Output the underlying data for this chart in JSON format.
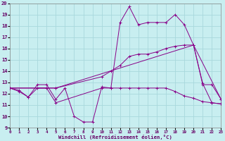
{
  "xlabel": "Windchill (Refroidissement éolien,°C)",
  "bg_color": "#c8eef0",
  "grid_color": "#a8d8dc",
  "line_color": "#880088",
  "xmin": 0,
  "xmax": 23,
  "ymin": 9,
  "ymax": 20,
  "lines": [
    {
      "x": [
        0,
        1,
        2,
        3,
        4,
        5,
        6,
        7,
        8,
        9,
        10,
        11,
        12,
        13,
        14,
        15,
        16,
        17,
        18,
        19,
        20,
        21,
        22,
        23
      ],
      "y": [
        12.5,
        12.2,
        11.7,
        12.8,
        12.8,
        11.5,
        12.5,
        10.0,
        9.5,
        9.5,
        12.6,
        12.5,
        18.3,
        19.7,
        18.1,
        18.3,
        18.3,
        18.3,
        19.0,
        18.1,
        16.3,
        12.9,
        11.2,
        11.1
      ]
    },
    {
      "x": [
        0,
        1,
        2,
        3,
        4,
        5,
        10,
        11,
        12,
        13,
        14,
        15,
        16,
        17,
        18,
        19,
        20,
        21,
        22,
        23
      ],
      "y": [
        12.5,
        12.3,
        11.7,
        12.5,
        12.5,
        11.2,
        12.5,
        12.5,
        12.5,
        12.5,
        12.5,
        12.5,
        12.5,
        12.5,
        12.2,
        11.8,
        11.6,
        11.3,
        11.2,
        11.1
      ]
    },
    {
      "x": [
        0,
        5,
        10,
        11,
        12,
        13,
        14,
        15,
        16,
        17,
        18,
        19,
        20,
        21,
        22,
        23
      ],
      "y": [
        12.5,
        12.5,
        13.5,
        14.0,
        14.5,
        15.3,
        15.5,
        15.5,
        15.7,
        16.0,
        16.2,
        16.3,
        16.3,
        12.8,
        12.8,
        11.5
      ]
    },
    {
      "x": [
        0,
        5,
        20,
        23
      ],
      "y": [
        12.5,
        12.5,
        16.3,
        11.5
      ]
    }
  ]
}
